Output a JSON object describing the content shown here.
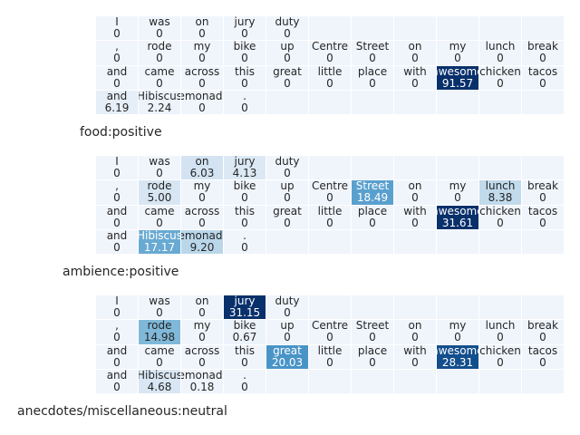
{
  "chart_data": [
    {
      "type": "heatmap",
      "caption": "food:positive",
      "grid": [
        [
          {
            "t": "I",
            "v": "0"
          },
          {
            "t": "was",
            "v": "0"
          },
          {
            "t": "on",
            "v": "0"
          },
          {
            "t": "jury",
            "v": "0"
          },
          {
            "t": "duty",
            "v": "0"
          },
          null,
          null,
          null,
          null,
          null,
          null
        ],
        [
          {
            "t": ",",
            "v": "0"
          },
          {
            "t": "rode",
            "v": "0"
          },
          {
            "t": "my",
            "v": "0"
          },
          {
            "t": "bike",
            "v": "0"
          },
          {
            "t": "up",
            "v": "0"
          },
          {
            "t": "Centre",
            "v": "0"
          },
          {
            "t": "Street",
            "v": "0"
          },
          {
            "t": "on",
            "v": "0"
          },
          {
            "t": "my",
            "v": "0"
          },
          {
            "t": "lunch",
            "v": "0"
          },
          {
            "t": "break",
            "v": "0"
          }
        ],
        [
          {
            "t": "and",
            "v": "0"
          },
          {
            "t": "came",
            "v": "0"
          },
          {
            "t": "across",
            "v": "0"
          },
          {
            "t": "this",
            "v": "0"
          },
          {
            "t": "great",
            "v": "0"
          },
          {
            "t": "little",
            "v": "0"
          },
          {
            "t": "place",
            "v": "0"
          },
          {
            "t": "with",
            "v": "0"
          },
          {
            "t": "awesome",
            "v": "91.57"
          },
          {
            "t": "chicken",
            "v": "0"
          },
          {
            "t": "tacos",
            "v": "0"
          }
        ],
        [
          {
            "t": "and",
            "v": "6.19"
          },
          {
            "t": "Hibiscus",
            "v": "2.24"
          },
          {
            "t": "lemonade",
            "v": "0"
          },
          {
            "t": ".",
            "v": "0"
          },
          null,
          null,
          null,
          null,
          null,
          null,
          null
        ]
      ]
    },
    {
      "type": "heatmap",
      "caption": "ambience:positive",
      "grid": [
        [
          {
            "t": "I",
            "v": "0"
          },
          {
            "t": "was",
            "v": "0"
          },
          {
            "t": "on",
            "v": "6.03"
          },
          {
            "t": "jury",
            "v": "4.13"
          },
          {
            "t": "duty",
            "v": "0"
          },
          null,
          null,
          null,
          null,
          null,
          null
        ],
        [
          {
            "t": ",",
            "v": "0"
          },
          {
            "t": "rode",
            "v": "5.00"
          },
          {
            "t": "my",
            "v": "0"
          },
          {
            "t": "bike",
            "v": "0"
          },
          {
            "t": "up",
            "v": "0"
          },
          {
            "t": "Centre",
            "v": "0"
          },
          {
            "t": "Street",
            "v": "18.49"
          },
          {
            "t": "on",
            "v": "0"
          },
          {
            "t": "my",
            "v": "0"
          },
          {
            "t": "lunch",
            "v": "8.38"
          },
          {
            "t": "break",
            "v": "0"
          }
        ],
        [
          {
            "t": "and",
            "v": "0"
          },
          {
            "t": "came",
            "v": "0"
          },
          {
            "t": "across",
            "v": "0"
          },
          {
            "t": "this",
            "v": "0"
          },
          {
            "t": "great",
            "v": "0"
          },
          {
            "t": "little",
            "v": "0"
          },
          {
            "t": "place",
            "v": "0"
          },
          {
            "t": "with",
            "v": "0"
          },
          {
            "t": "awesome",
            "v": "31.61"
          },
          {
            "t": "chicken",
            "v": "0"
          },
          {
            "t": "tacos",
            "v": "0"
          }
        ],
        [
          {
            "t": "and",
            "v": "0"
          },
          {
            "t": "Hibiscus",
            "v": "17.17"
          },
          {
            "t": "lemonade",
            "v": "9.20"
          },
          {
            "t": ".",
            "v": "0"
          },
          null,
          null,
          null,
          null,
          null,
          null,
          null
        ]
      ]
    },
    {
      "type": "heatmap",
      "caption": "anecdotes/miscellaneous:neutral",
      "grid": [
        [
          {
            "t": "I",
            "v": "0"
          },
          {
            "t": "was",
            "v": "0"
          },
          {
            "t": "on",
            "v": "0"
          },
          {
            "t": "jury",
            "v": "31.15"
          },
          {
            "t": "duty",
            "v": "0"
          },
          null,
          null,
          null,
          null,
          null,
          null
        ],
        [
          {
            "t": ",",
            "v": "0"
          },
          {
            "t": "rode",
            "v": "14.98"
          },
          {
            "t": "my",
            "v": "0"
          },
          {
            "t": "bike",
            "v": "0.67"
          },
          {
            "t": "up",
            "v": "0"
          },
          {
            "t": "Centre",
            "v": "0"
          },
          {
            "t": "Street",
            "v": "0"
          },
          {
            "t": "on",
            "v": "0"
          },
          {
            "t": "my",
            "v": "0"
          },
          {
            "t": "lunch",
            "v": "0"
          },
          {
            "t": "break",
            "v": "0"
          }
        ],
        [
          {
            "t": "and",
            "v": "0"
          },
          {
            "t": "came",
            "v": "0"
          },
          {
            "t": "across",
            "v": "0"
          },
          {
            "t": "this",
            "v": "0"
          },
          {
            "t": "great",
            "v": "20.03"
          },
          {
            "t": "little",
            "v": "0"
          },
          {
            "t": "place",
            "v": "0"
          },
          {
            "t": "with",
            "v": "0"
          },
          {
            "t": "awesome",
            "v": "28.31"
          },
          {
            "t": "chicken",
            "v": "0"
          },
          {
            "t": "tacos",
            "v": "0"
          }
        ],
        [
          {
            "t": "and",
            "v": "0"
          },
          {
            "t": "Hibiscus",
            "v": "4.68"
          },
          {
            "t": "lemonade",
            "v": "0.18"
          },
          {
            "t": ".",
            "v": "0"
          },
          null,
          null,
          null,
          null,
          null,
          null,
          null
        ]
      ]
    }
  ]
}
